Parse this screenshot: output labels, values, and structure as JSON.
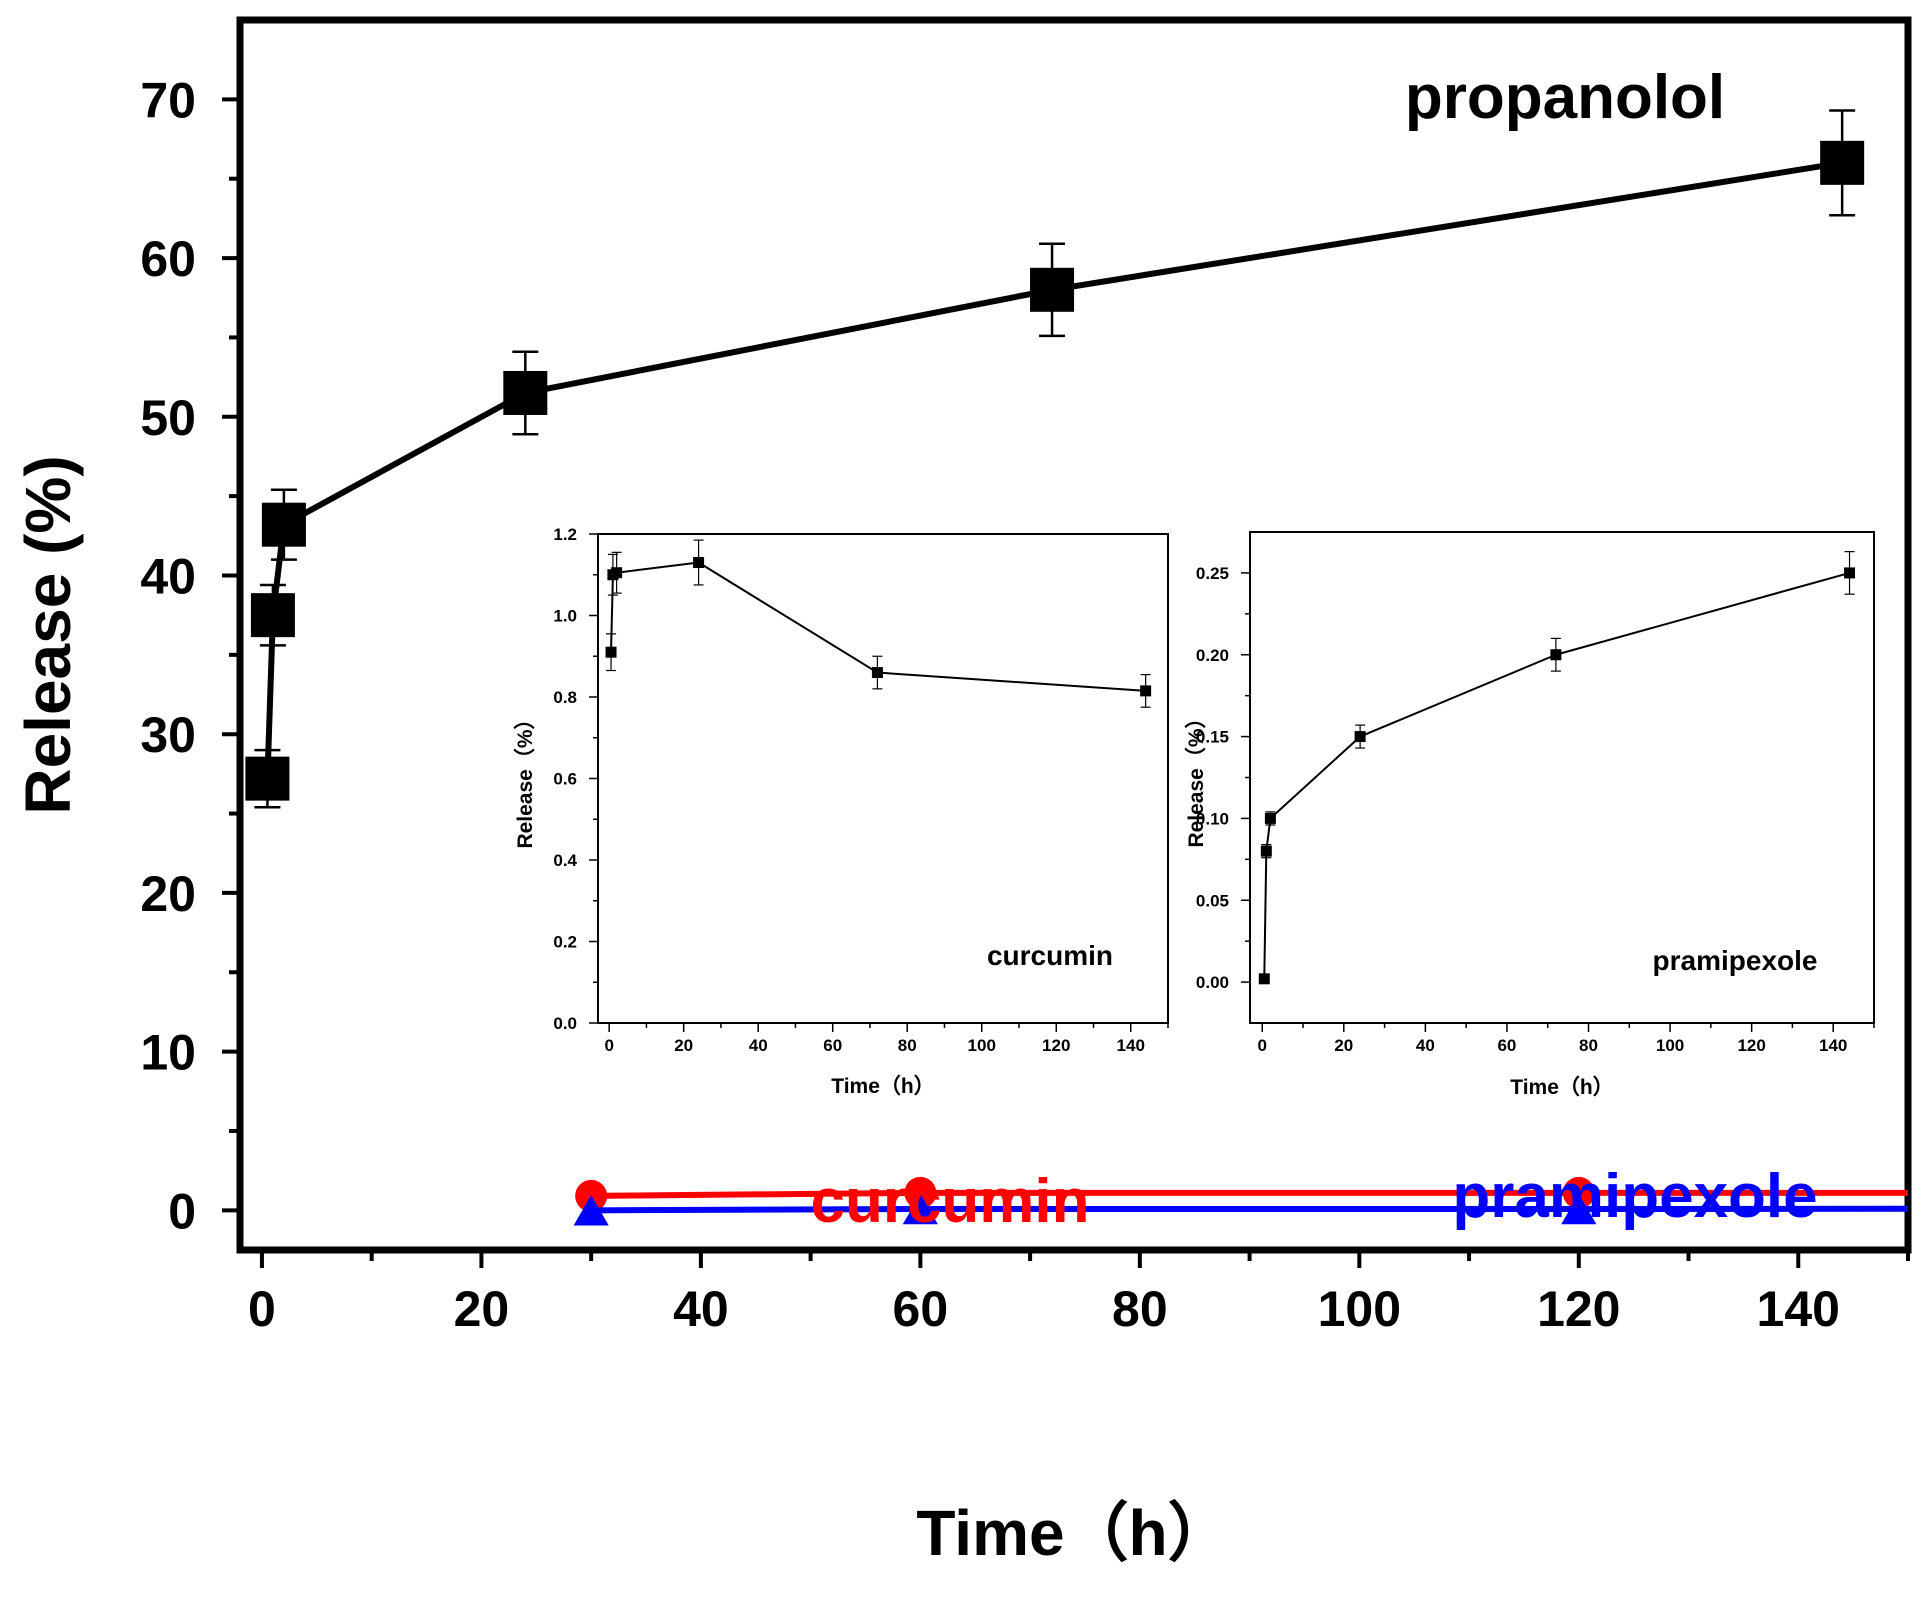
{
  "chart_data": [
    {
      "id": "main",
      "type": "line",
      "xlabel": "Time（h）",
      "ylabel": "Release (%)",
      "xlim": [
        -2,
        150
      ],
      "ylim": [
        -2.5,
        75
      ],
      "x_ticks": [
        0,
        20,
        40,
        60,
        80,
        100,
        120,
        140
      ],
      "y_ticks": [
        0,
        10,
        20,
        30,
        40,
        50,
        60,
        70
      ],
      "series": [
        {
          "name": "propanolol",
          "color": "#000000",
          "marker": "square",
          "x": [
            0.5,
            1,
            2,
            24,
            72,
            144
          ],
          "y": [
            27.2,
            37.5,
            43.2,
            51.5,
            58.0,
            66.0
          ],
          "err": [
            1.8,
            1.9,
            2.2,
            2.6,
            2.9,
            3.3
          ]
        },
        {
          "name": "curcumin",
          "color": "#ff0000",
          "marker": "circle",
          "x": [
            30,
            60,
            120,
            150
          ],
          "y": [
            0.91,
            1.1,
            1.1,
            1.1
          ],
          "marked_points": 3
        },
        {
          "name": "pramipexole",
          "color": "#0000ff",
          "marker": "triangle",
          "x": [
            30,
            60,
            120,
            150
          ],
          "y": [
            0.0,
            0.08,
            0.08,
            0.1
          ],
          "marked_points": 3
        }
      ],
      "annotations": [
        {
          "text": "propanolol",
          "color": "#000000"
        },
        {
          "text": "curcumin",
          "color": "#ff0000"
        },
        {
          "text": "pramipexole",
          "color": "#0000ff"
        }
      ]
    },
    {
      "id": "inset-curcumin",
      "type": "line",
      "xlabel": "Time（h）",
      "ylabel": "Release（%）",
      "xlim": [
        -3,
        150
      ],
      "ylim": [
        0,
        1.2
      ],
      "x_ticks": [
        0,
        20,
        40,
        60,
        80,
        100,
        120,
        140
      ],
      "y_ticks": [
        "0.0",
        "0.2",
        "0.4",
        "0.6",
        "0.8",
        "1.0",
        "1.2"
      ],
      "annotation": "curcumin",
      "series": [
        {
          "name": "curcumin",
          "color": "#000000",
          "x": [
            0.5,
            1,
            2,
            24,
            72,
            144
          ],
          "y": [
            0.91,
            1.1,
            1.105,
            1.13,
            0.86,
            0.815
          ],
          "err": [
            0.045,
            0.05,
            0.05,
            0.055,
            0.04,
            0.04
          ]
        }
      ]
    },
    {
      "id": "inset-pramipexole",
      "type": "line",
      "xlabel": "Time（h）",
      "ylabel": "Release（%）",
      "xlim": [
        -3,
        150
      ],
      "ylim": [
        -0.025,
        0.275
      ],
      "x_ticks": [
        0,
        20,
        40,
        60,
        80,
        100,
        120,
        140
      ],
      "y_ticks": [
        "0.00",
        "0.05",
        "0.10",
        "0.15",
        "0.20",
        "0.25"
      ],
      "annotation": "pramipexole",
      "series": [
        {
          "name": "pramipexole",
          "color": "#000000",
          "x": [
            0.5,
            1,
            2,
            24,
            72,
            144
          ],
          "y": [
            0.002,
            0.08,
            0.1,
            0.15,
            0.2,
            0.25
          ],
          "err": [
            0,
            0.004,
            0.004,
            0.007,
            0.01,
            0.013
          ]
        }
      ]
    }
  ]
}
